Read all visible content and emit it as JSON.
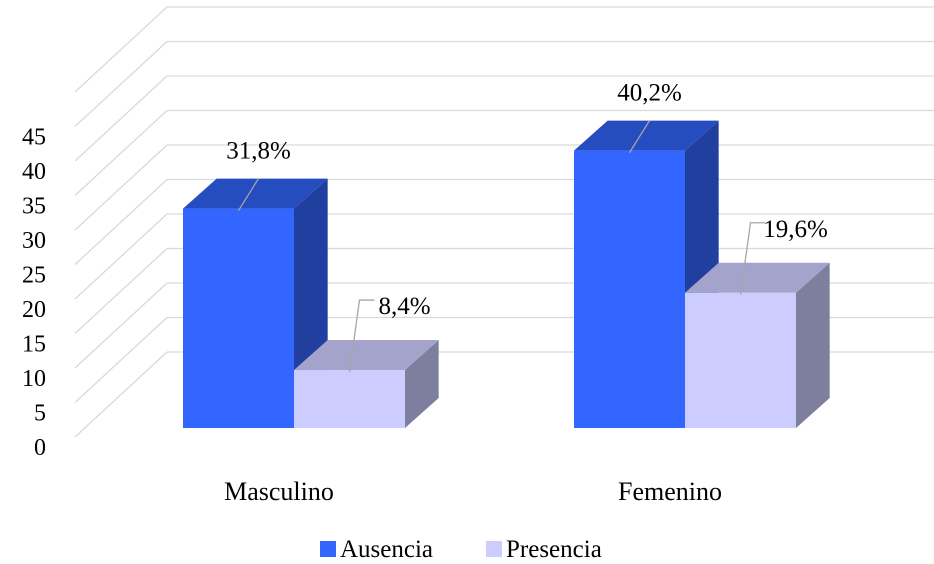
{
  "chart_data": {
    "type": "bar",
    "categories": [
      "Masculino",
      "Femenino"
    ],
    "series": [
      {
        "name": "Ausencia",
        "values": [
          31.8,
          40.2
        ],
        "labels": [
          "31,8%",
          "40,2%"
        ],
        "color": "#3366ff"
      },
      {
        "name": "Presencia",
        "values": [
          8.4,
          19.6
        ],
        "labels": [
          "8,4%",
          "19,6%"
        ],
        "color": "#ccccff"
      }
    ],
    "yticks": [
      "0",
      "5",
      "10",
      "15",
      "20",
      "25",
      "30",
      "35",
      "40",
      "45"
    ],
    "ylim": [
      0,
      50
    ],
    "title": "",
    "xlabel": "",
    "ylabel": "",
    "grid": true,
    "legend_position": "bottom"
  }
}
